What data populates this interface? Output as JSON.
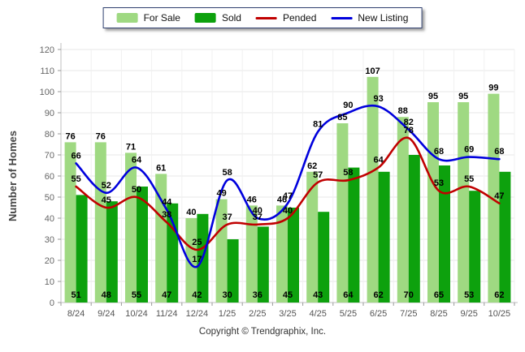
{
  "chart_data": {
    "type": "bar",
    "subtype": "grouped-bars-with-smooth-lines",
    "categories": [
      "8/24",
      "9/24",
      "10/24",
      "11/24",
      "12/24",
      "1/25",
      "2/25",
      "3/25",
      "4/25",
      "5/25",
      "6/25",
      "7/25",
      "8/25",
      "9/25",
      "10/25"
    ],
    "series": [
      {
        "name": "For Sale",
        "type": "bar",
        "color": "#9FD982",
        "values": [
          76,
          76,
          71,
          61,
          40,
          49,
          46,
          46,
          62,
          85,
          107,
          88,
          95,
          95,
          99
        ]
      },
      {
        "name": "Sold",
        "type": "bar",
        "color": "#0DA10D",
        "values": [
          51,
          48,
          55,
          47,
          42,
          30,
          36,
          45,
          43,
          64,
          62,
          70,
          65,
          53,
          62
        ]
      },
      {
        "name": "Pended",
        "type": "line",
        "color": "#C00000",
        "values": [
          55,
          45,
          50,
          38,
          25,
          37,
          37,
          40,
          57,
          58,
          64,
          78,
          53,
          55,
          47
        ]
      },
      {
        "name": "New Listing",
        "type": "line",
        "color": "#0000DD",
        "values": [
          66,
          52,
          64,
          44,
          17,
          58,
          40,
          47,
          81,
          90,
          93,
          82,
          68,
          69,
          68
        ]
      }
    ],
    "title": "",
    "xlabel": "",
    "ylabel": "Number of Homes",
    "ylim": [
      0,
      120
    ],
    "ytick_step": 10,
    "grid": true,
    "legend_position": "top"
  },
  "footer": {
    "copyright_text": "Copyright © Trendgraphix, Inc."
  },
  "colors": {
    "grid_h": "#e7e7e7",
    "grid_v": "#f1f1f1",
    "axis": "#bfbfbf",
    "tick": "#9a9a9a",
    "tick_label": "#666666",
    "x_label": "#555555",
    "data_label": "#000000",
    "y_title": "#444444"
  }
}
